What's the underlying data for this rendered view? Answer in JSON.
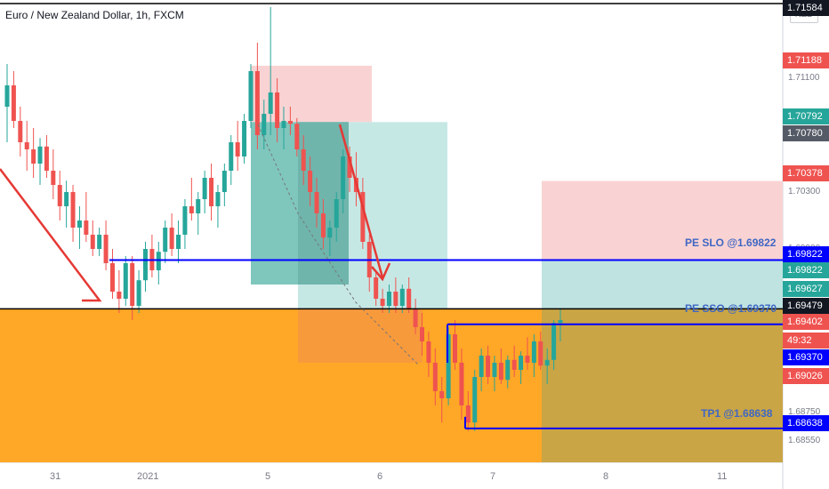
{
  "window": {
    "title": "Euro / New Zealand Dollar, 1h, FXCM",
    "currency_badge": "NZD"
  },
  "colors": {
    "up_candle": "#26a69a",
    "down_candle": "#ef5350",
    "blue_line": "#0000ff",
    "black_line": "#000000",
    "orange_zone": "#ffa726",
    "red_arrow": "#e53935",
    "tp_zone": "#bfe3e0",
    "sl_zone": "#f9d3d3"
  },
  "price_axis": {
    "ticks": [
      "1.71100",
      "1.70300",
      "1.69900",
      "1.68750",
      "1.68550"
    ],
    "labels": [
      {
        "text": "1.71584",
        "bg": "#131722"
      },
      {
        "text": "1.71188",
        "bg": "#ef5350"
      },
      {
        "text": "1.70792",
        "bg": "#26a69a"
      },
      {
        "text": "1.70780",
        "bg": "#555b66"
      },
      {
        "text": "1.70378",
        "bg": "#ef5350"
      },
      {
        "text": "1.69822",
        "bg": "#0000ff"
      },
      {
        "text": "1.69822",
        "bg": "#26a69a"
      },
      {
        "text": "1.69627",
        "bg": "#26a69a"
      },
      {
        "text": "1.69479",
        "bg": "#131722"
      },
      {
        "text": "1.69402",
        "bg": "#ef5350"
      },
      {
        "text": "49:32",
        "bg": "#ef5350"
      },
      {
        "text": "1.69370",
        "bg": "#0000ff"
      },
      {
        "text": "1.69026",
        "bg": "#ef5350"
      },
      {
        "text": "1.68638",
        "bg": "#0000ff"
      }
    ]
  },
  "time_axis": {
    "ticks": [
      "31",
      "2021",
      "5",
      "6",
      "7",
      "8",
      "11"
    ]
  },
  "annotations": {
    "pe_slo": "PE SLO @1.69822",
    "pe_sso": "PE SSO @1.69370",
    "tp1": "TP1 @1.68638"
  },
  "chart_data": {
    "type": "candlestick",
    "title": "Euro / New Zealand Dollar, 1h, FXCM",
    "symbol": "EURNZD",
    "timeframe": "1h",
    "y_range": [
      1.684,
      1.7165
    ],
    "x_tick_labels": [
      "31",
      "2021",
      "5",
      "6",
      "7",
      "8",
      "11"
    ],
    "horizontal_levels": [
      {
        "label": "PE SLO @1.69822",
        "price": 1.69822,
        "color": "blue"
      },
      {
        "label": "PE SSO @1.69370",
        "price": 1.6937,
        "color": "blue"
      },
      {
        "label": "TP1 @1.68638",
        "price": 1.68638,
        "color": "blue"
      },
      {
        "price": 1.69479,
        "color": "black"
      }
    ],
    "position_zones": [
      {
        "kind": "stop",
        "from": 1.69822,
        "to": 1.70378
      },
      {
        "kind": "target",
        "from": 1.69479,
        "to": 1.69822
      },
      {
        "kind": "stop",
        "from": 1.70792,
        "to": 1.71188
      },
      {
        "kind": "target",
        "from": 1.69627,
        "to": 1.70792
      }
    ],
    "candles": [
      [
        1.709,
        1.712,
        1.7065,
        1.7105
      ],
      [
        1.7105,
        1.7115,
        1.7075,
        1.708
      ],
      [
        1.708,
        1.709,
        1.7055,
        1.7065
      ],
      [
        1.7065,
        1.708,
        1.7045,
        1.706
      ],
      [
        1.706,
        1.7075,
        1.704,
        1.705
      ],
      [
        1.705,
        1.7068,
        1.7035,
        1.7062
      ],
      [
        1.7062,
        1.707,
        1.704,
        1.7045
      ],
      [
        1.7045,
        1.706,
        1.7025,
        1.7035
      ],
      [
        1.7035,
        1.7045,
        1.701,
        1.702
      ],
      [
        1.702,
        1.7038,
        1.7005,
        1.703
      ],
      [
        1.703,
        1.7035,
        1.6995,
        1.7005
      ],
      [
        1.7005,
        1.702,
        1.699,
        1.701
      ],
      [
        1.701,
        1.703,
        1.6995,
        1.7
      ],
      [
        1.7,
        1.701,
        1.6985,
        1.699
      ],
      [
        1.699,
        1.7005,
        1.6985,
        1.7
      ],
      [
        1.7,
        1.701,
        1.6975,
        1.698
      ],
      [
        1.698,
        1.699,
        1.6955,
        1.696
      ],
      [
        1.696,
        1.6975,
        1.6945,
        1.6955
      ],
      [
        1.6955,
        1.6985,
        1.695,
        1.698
      ],
      [
        1.698,
        1.6985,
        1.694,
        1.695
      ],
      [
        1.695,
        1.6975,
        1.6945,
        1.6968
      ],
      [
        1.6968,
        1.6995,
        1.696,
        1.699
      ],
      [
        1.699,
        1.7,
        1.697,
        1.6975
      ],
      [
        1.6975,
        1.6995,
        1.6965,
        1.6988
      ],
      [
        1.6988,
        1.701,
        1.698,
        1.7005
      ],
      [
        1.7005,
        1.7015,
        1.6985,
        1.699
      ],
      [
        1.699,
        1.701,
        1.698,
        1.7
      ],
      [
        1.7,
        1.7025,
        1.699,
        1.702
      ],
      [
        1.702,
        1.704,
        1.701,
        1.7015
      ],
      [
        1.7015,
        1.703,
        1.7,
        1.7025
      ],
      [
        1.7025,
        1.7045,
        1.7015,
        1.704
      ],
      [
        1.704,
        1.705,
        1.701,
        1.702
      ],
      [
        1.702,
        1.7035,
        1.7005,
        1.703
      ],
      [
        1.703,
        1.705,
        1.702,
        1.7045
      ],
      [
        1.7045,
        1.707,
        1.7035,
        1.7065
      ],
      [
        1.7065,
        1.708,
        1.7045,
        1.7055
      ],
      [
        1.7055,
        1.7085,
        1.705,
        1.708
      ],
      [
        1.708,
        1.712,
        1.7075,
        1.7115
      ],
      [
        1.7115,
        1.7135,
        1.706,
        1.707
      ],
      [
        1.707,
        1.7095,
        1.706,
        1.7085
      ],
      [
        1.7085,
        1.716,
        1.707,
        1.71
      ],
      [
        1.71,
        1.711,
        1.7065,
        1.7075
      ],
      [
        1.7075,
        1.709,
        1.706,
        1.708
      ],
      [
        1.708,
        1.709,
        1.707,
        1.7078
      ],
      [
        1.7078,
        1.7082,
        1.7055,
        1.706
      ],
      [
        1.706,
        1.707,
        1.7035,
        1.7045
      ],
      [
        1.7045,
        1.7055,
        1.702,
        1.703
      ],
      [
        1.703,
        1.704,
        1.7005,
        1.7015
      ],
      [
        1.7015,
        1.7025,
        1.699,
        1.6998
      ],
      [
        1.6998,
        1.701,
        1.6985,
        1.7005
      ],
      [
        1.7005,
        1.703,
        1.6995,
        1.7025
      ],
      [
        1.7025,
        1.706,
        1.7015,
        1.7055
      ],
      [
        1.7055,
        1.7062,
        1.703,
        1.704
      ],
      [
        1.704,
        1.7058,
        1.702,
        1.703
      ],
      [
        1.703,
        1.704,
        1.699,
        1.6995
      ],
      [
        1.6995,
        1.7,
        1.696,
        1.697
      ],
      [
        1.697,
        1.6975,
        1.695,
        1.6955
      ],
      [
        1.6955,
        1.6962,
        1.6945,
        1.695
      ],
      [
        1.695,
        1.6965,
        1.6945,
        1.696
      ],
      [
        1.696,
        1.697,
        1.6945,
        1.695
      ],
      [
        1.695,
        1.6965,
        1.6945,
        1.6962
      ],
      [
        1.6962,
        1.697,
        1.6945,
        1.6948
      ],
      [
        1.6948,
        1.6955,
        1.693,
        1.6935
      ],
      [
        1.6935,
        1.6945,
        1.6915,
        1.6925
      ],
      [
        1.6925,
        1.6932,
        1.69,
        1.691
      ],
      [
        1.691,
        1.692,
        1.688,
        1.689
      ],
      [
        1.689,
        1.69,
        1.6868,
        1.6885
      ],
      [
        1.6885,
        1.6935,
        1.688,
        1.693
      ],
      [
        1.693,
        1.694,
        1.6905,
        1.691
      ],
      [
        1.691,
        1.692,
        1.687,
        1.688
      ],
      [
        1.688,
        1.689,
        1.6862,
        1.6868
      ],
      [
        1.6868,
        1.6905,
        1.6862,
        1.69
      ],
      [
        1.69,
        1.692,
        1.689,
        1.6915
      ],
      [
        1.6915,
        1.6922,
        1.6895,
        1.69
      ],
      [
        1.69,
        1.6915,
        1.689,
        1.691
      ],
      [
        1.691,
        1.692,
        1.6895,
        1.6898
      ],
      [
        1.6898,
        1.6915,
        1.6892,
        1.6912
      ],
      [
        1.6912,
        1.6922,
        1.69,
        1.6905
      ],
      [
        1.6905,
        1.6918,
        1.6895,
        1.6915
      ],
      [
        1.6915,
        1.6928,
        1.6905,
        1.691
      ],
      [
        1.691,
        1.693,
        1.69,
        1.6925
      ],
      [
        1.6925,
        1.6932,
        1.6905,
        1.6908
      ],
      [
        1.6908,
        1.692,
        1.6895,
        1.6912
      ],
      [
        1.6912,
        1.694,
        1.6905,
        1.6938
      ],
      [
        1.6938,
        1.6948,
        1.6925,
        1.694
      ]
    ]
  }
}
